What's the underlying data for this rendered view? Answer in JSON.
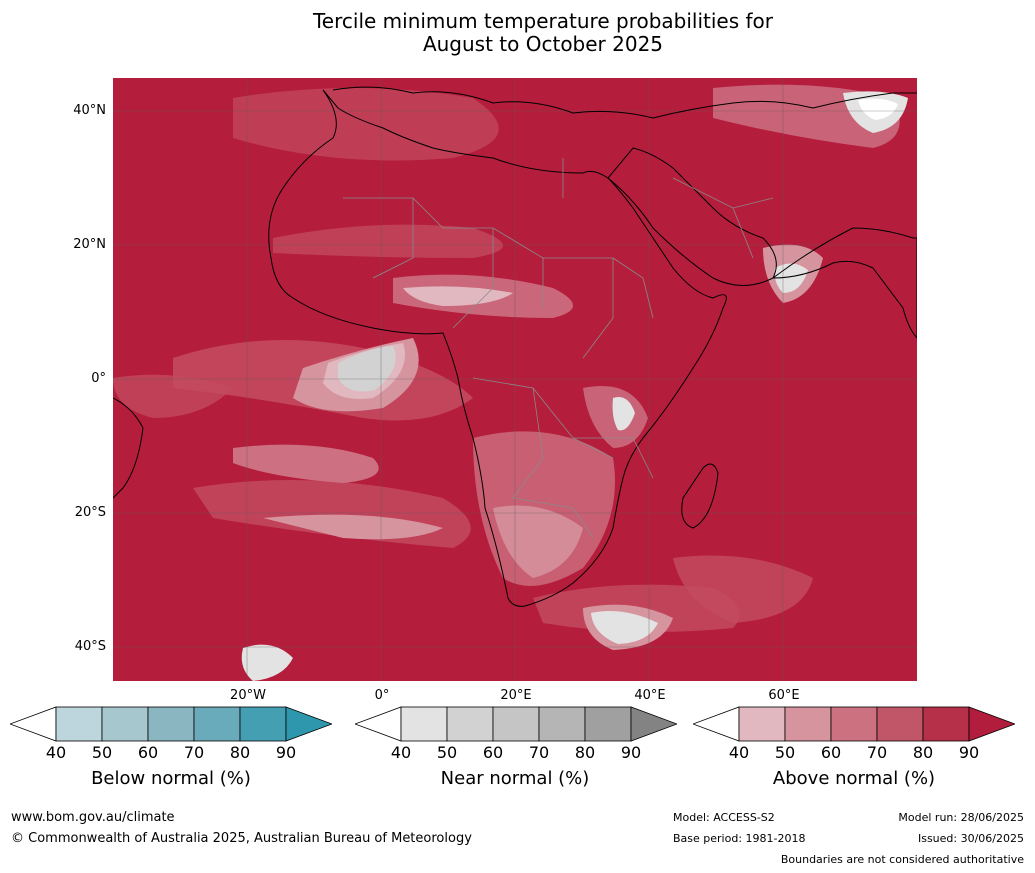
{
  "title": {
    "line1": "Tercile minimum temperature probabilities for",
    "line2": "August to October 2025"
  },
  "map": {
    "lat_labels": [
      "40°N",
      "20°N",
      "0°",
      "20°S",
      "40°S"
    ],
    "lon_labels": [
      "20°W",
      "0°",
      "20°E",
      "40°E",
      "60°E"
    ],
    "lon_range": [
      -40,
      80
    ],
    "lat_range": [
      -45,
      45
    ],
    "dominant_category": "Above normal"
  },
  "colorbars": [
    {
      "title": "Below normal (%)",
      "ticks": [
        "40",
        "50",
        "60",
        "70",
        "80",
        "90"
      ],
      "colors": [
        "#ffffff",
        "#bdd5dc",
        "#a7c7ce",
        "#8ab6c2",
        "#6aabbb",
        "#449fb2",
        "#2e96ad"
      ]
    },
    {
      "title": "Near normal (%)",
      "ticks": [
        "40",
        "50",
        "60",
        "70",
        "80",
        "90"
      ],
      "colors": [
        "#ffffff",
        "#e3e3e3",
        "#d2d2d2",
        "#c5c5c5",
        "#b5b5b5",
        "#a0a0a0",
        "#838383"
      ]
    },
    {
      "title": "Above normal (%)",
      "ticks": [
        "40",
        "50",
        "60",
        "70",
        "80",
        "90"
      ],
      "colors": [
        "#ffffff",
        "#e1b8bf",
        "#d6949f",
        "#cc7180",
        "#c15668",
        "#b6304a",
        "#b31d3d"
      ]
    }
  ],
  "footer": {
    "website": "www.bom.gov.au/climate",
    "copyright": "© Commonwealth of Australia 2025, Australian Bureau of Meteorology",
    "model": "Model: ACCESS-S2",
    "base_period": "Base period: 1981-2018",
    "model_run": "Model run: 28/06/2025",
    "issued": "Issued: 30/06/2025",
    "disclaimer": "Boundaries are not considered authoritative"
  }
}
